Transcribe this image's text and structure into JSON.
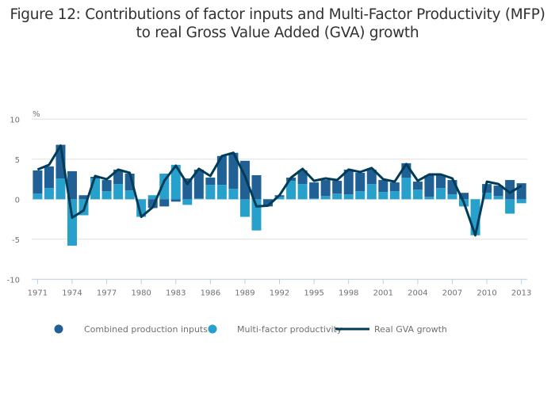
{
  "title_lines": [
    "Figure 12: Contributions of factor inputs and Multi-Factor Productivity (MFP)",
    "to real Gross Value Added (GVA) growth"
  ],
  "colors": {
    "combined_inputs": "#206095",
    "mfp": "#27a0cc",
    "gva_line": "#003c57",
    "grid": "#e0e0e0",
    "axis": "#bccde0",
    "text": "#707070"
  },
  "chart_data": {
    "type": "bar",
    "stacked": true,
    "title": "Figure 12: Contributions of factor inputs and Multi-Factor Productivity (MFP) to real Gross Value Added (GVA) growth",
    "xlabel": "",
    "ylabel": "%",
    "ylim": [
      -10,
      10
    ],
    "yticks": [
      10,
      5,
      0,
      -5,
      -10
    ],
    "grid": true,
    "legend_position": "bottom",
    "x": [
      1971,
      1972,
      1973,
      1974,
      1975,
      1976,
      1977,
      1978,
      1979,
      1980,
      1981,
      1982,
      1983,
      1984,
      1985,
      1986,
      1987,
      1988,
      1989,
      1990,
      1991,
      1992,
      1993,
      1994,
      1995,
      1996,
      1997,
      1998,
      1999,
      2000,
      2001,
      2002,
      2003,
      2004,
      2005,
      2006,
      2007,
      2008,
      2009,
      2010,
      2011,
      2012,
      2013
    ],
    "xtick_labels": [
      "1971",
      "1974",
      "1977",
      "1980",
      "1983",
      "1986",
      "1989",
      "1992",
      "1995",
      "1998",
      "2001",
      "2004",
      "2007",
      "2010",
      "2013"
    ],
    "series": [
      {
        "name": "Combined production inputs",
        "type": "bar",
        "values": [
          2.9,
          2.7,
          4.2,
          3.5,
          0.5,
          0.2,
          1.4,
          1.8,
          2.1,
          0.0,
          -1.1,
          -0.9,
          -0.3,
          2.6,
          3.6,
          0.9,
          3.6,
          4.5,
          4.8,
          3.0,
          -0.9,
          0.2,
          0.4,
          1.7,
          2.0,
          2.0,
          1.6,
          3.1,
          2.3,
          1.8,
          1.5,
          1.1,
          1.8,
          1.0,
          2.7,
          1.6,
          1.8,
          0.8,
          0.0,
          1.1,
          1.3,
          2.4,
          2.0
        ]
      },
      {
        "name": "Multi-factor productivity",
        "type": "bar",
        "values": [
          0.7,
          1.4,
          2.6,
          -5.8,
          -2.0,
          2.6,
          1.0,
          1.9,
          1.1,
          -2.2,
          0.5,
          3.2,
          4.3,
          -0.7,
          0.1,
          1.8,
          1.8,
          1.3,
          -2.2,
          -3.9,
          0.0,
          0.3,
          2.3,
          1.9,
          0.1,
          0.4,
          0.7,
          0.6,
          1.0,
          1.9,
          0.9,
          1.0,
          2.7,
          1.2,
          0.3,
          1.4,
          0.6,
          -0.9,
          -4.5,
          0.8,
          0.4,
          -1.8,
          -0.5
        ]
      },
      {
        "name": "Real GVA growth",
        "type": "line",
        "values": [
          3.7,
          4.3,
          6.7,
          -2.3,
          -1.4,
          2.9,
          2.5,
          3.7,
          3.3,
          -2.2,
          -1.0,
          2.3,
          4.2,
          1.9,
          3.8,
          2.9,
          5.4,
          5.8,
          2.9,
          -0.9,
          -0.8,
          0.5,
          2.7,
          3.8,
          2.3,
          2.6,
          2.4,
          3.7,
          3.4,
          3.9,
          2.5,
          2.2,
          4.4,
          2.3,
          3.1,
          3.1,
          2.6,
          -0.4,
          -4.5,
          2.2,
          1.9,
          0.8,
          1.7
        ]
      }
    ]
  }
}
